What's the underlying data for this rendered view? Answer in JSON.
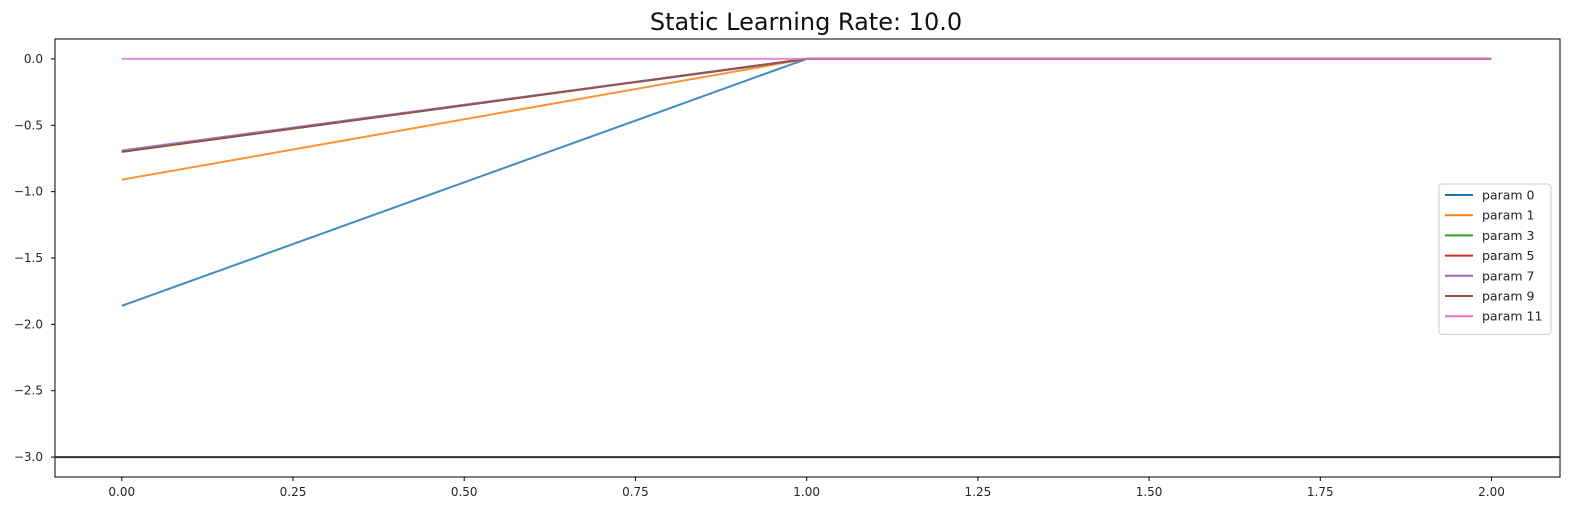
{
  "chart_data": {
    "type": "line",
    "title": "Static Learning Rate: 10.0",
    "xlabel": "",
    "ylabel": "",
    "xlim": [
      -0.0975,
      2.1
    ],
    "ylim": [
      -3.15,
      0.15
    ],
    "xticks": [
      0.0,
      0.25,
      0.5,
      0.75,
      1.0,
      1.25,
      1.5,
      1.75,
      2.0
    ],
    "xtick_labels": [
      "0.00",
      "0.25",
      "0.50",
      "0.75",
      "1.00",
      "1.25",
      "1.50",
      "1.75",
      "2.00"
    ],
    "yticks": [
      0.0,
      -0.5,
      -1.0,
      -1.5,
      -2.0,
      -2.5,
      -3.0
    ],
    "ytick_labels": [
      "0.0",
      "−0.5",
      "−1.0",
      "−1.5",
      "−2.0",
      "−2.5",
      "−3.0"
    ],
    "grid": false,
    "legend_position": "center-right",
    "x": [
      0,
      1,
      2
    ],
    "series": [
      {
        "name": "param 0",
        "color": "#1f77b4",
        "values": [
          -1.86,
          0.0,
          0.0
        ]
      },
      {
        "name": "param 1",
        "color": "#ff7f0e",
        "values": [
          -0.91,
          0.0,
          0.0
        ]
      },
      {
        "name": "param 3",
        "color": "#2ca02c",
        "values": [
          -0.7,
          0.0,
          0.0
        ]
      },
      {
        "name": "param 5",
        "color": "#d62728",
        "values": [
          -0.7,
          0.0,
          0.0
        ]
      },
      {
        "name": "param 7",
        "color": "#9467bd",
        "values": [
          -0.69,
          0.0,
          0.0
        ]
      },
      {
        "name": "param 9",
        "color": "#8c564b",
        "values": [
          -0.7,
          0.0,
          0.0
        ]
      },
      {
        "name": "param 11",
        "color": "#e377c2",
        "values": [
          0.0,
          0.0,
          0.0
        ]
      }
    ],
    "hline": {
      "y": -3.0,
      "color": "#333333"
    }
  }
}
